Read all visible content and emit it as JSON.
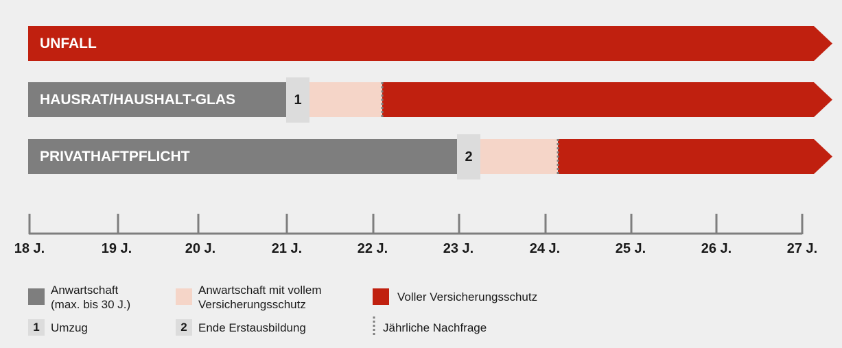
{
  "bars": {
    "unfall": {
      "label": "UNFALL"
    },
    "hausrat": {
      "label": "HAUSRAT/HAUSHALT-GLAS",
      "marker": "1"
    },
    "privathaftpflicht": {
      "label": "PRIVATHAFTPFLICHT",
      "marker": "2"
    }
  },
  "axis": {
    "ticks": [
      "18 J.",
      "19 J.",
      "20 J.",
      "21 J.",
      "22 J.",
      "23 J.",
      "24 J.",
      "25 J.",
      "26 J.",
      "27 J."
    ]
  },
  "legend": {
    "anwartschaft": {
      "line1": "Anwartschaft",
      "line2": "(max. bis 30 J.)"
    },
    "anwartschaft_voll": {
      "line1": "Anwartschaft mit vollem",
      "line2": "Versicherungsschutz"
    },
    "voller_schutz": {
      "label": "Voller Versicherungsschutz"
    },
    "umzug": {
      "num": "1",
      "label": "Umzug"
    },
    "ende": {
      "num": "2",
      "label": "Ende Erstausbildung"
    },
    "nachfrage": {
      "label": "Jährliche Nachfrage"
    }
  },
  "colors": {
    "red": "#c0200f",
    "grey": "#7e7e7e",
    "pink": "#f5d5c8",
    "marker": "#dcdcdc",
    "background": "#efefef"
  }
}
